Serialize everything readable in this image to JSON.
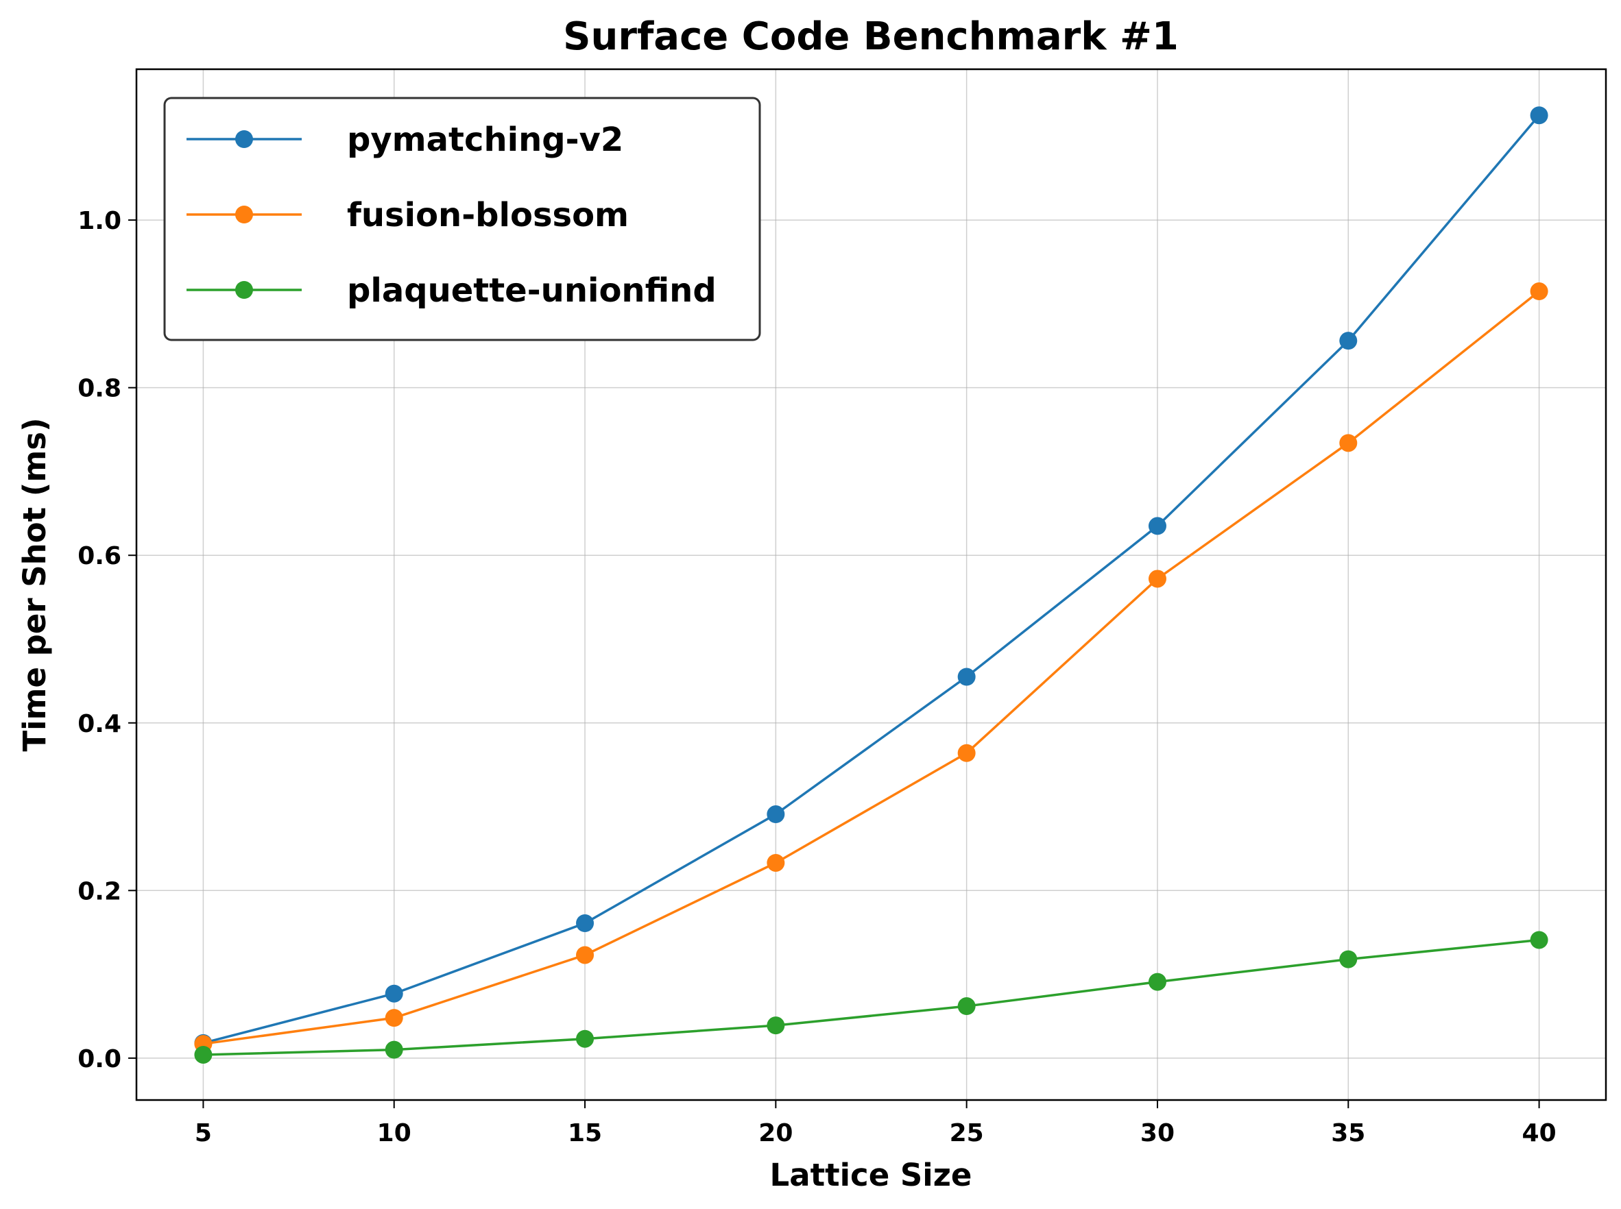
{
  "chart_data": {
    "type": "line",
    "title": "Surface Code Benchmark #1",
    "xlabel": "Lattice Size",
    "ylabel": "Time per Shot (ms)",
    "x": [
      5,
      10,
      15,
      20,
      25,
      30,
      35,
      40
    ],
    "xlim": [
      3.25,
      41.75
    ],
    "ylim": [
      -0.05,
      1.18
    ],
    "xticks": [
      5,
      10,
      15,
      20,
      25,
      30,
      35,
      40
    ],
    "yticks": [
      0.0,
      0.2,
      0.4,
      0.6,
      0.8,
      1.0
    ],
    "xtick_labels": [
      "5",
      "10",
      "15",
      "20",
      "25",
      "30",
      "35",
      "40"
    ],
    "ytick_labels": [
      "0.0",
      "0.2",
      "0.4",
      "0.6",
      "0.8",
      "1.0"
    ],
    "grid": true,
    "legend_position": "top-left",
    "series": [
      {
        "name": "pymatching-v2",
        "color": "#1f77b4",
        "marker": "circle",
        "values": [
          0.018,
          0.077,
          0.161,
          0.291,
          0.455,
          0.635,
          0.856,
          1.125
        ]
      },
      {
        "name": "fusion-blossom",
        "color": "#ff7f0e",
        "marker": "circle",
        "values": [
          0.017,
          0.048,
          0.123,
          0.233,
          0.364,
          0.572,
          0.734,
          0.915
        ]
      },
      {
        "name": "plaquette-unionfind",
        "color": "#2ca02c",
        "marker": "circle",
        "values": [
          0.004,
          0.01,
          0.023,
          0.039,
          0.062,
          0.091,
          0.118,
          0.141
        ]
      }
    ]
  }
}
